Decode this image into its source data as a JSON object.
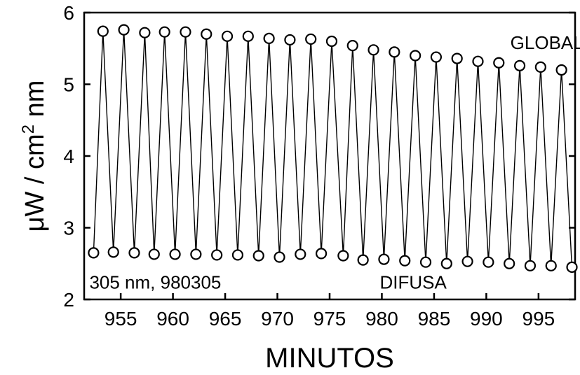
{
  "chart_data": {
    "type": "line",
    "title": "",
    "xlabel": "MINUTOS",
    "ylabel_main": "μW / cm",
    "ylabel_sup": "2",
    "ylabel_tail": " nm",
    "xlim": [
      951.5,
      998.5
    ],
    "ylim": [
      2,
      6
    ],
    "x_ticks": [
      955,
      960,
      965,
      970,
      975,
      980,
      985,
      990,
      995
    ],
    "x_tick_labels": [
      "955",
      "960",
      "965",
      "970",
      "975",
      "980",
      "985",
      "990",
      "995"
    ],
    "y_ticks": [
      2,
      3,
      4,
      5,
      6
    ],
    "y_tick_labels": [
      "2",
      "3",
      "4",
      "5",
      "6"
    ],
    "grid": false,
    "marker": "open-circle",
    "line_color": "#000000",
    "annotations": [
      {
        "text": "GLOBAL",
        "x": 992.3,
        "y": 5.59
      },
      {
        "text": "DIFUSA",
        "x": 979.8,
        "y": 2.25
      },
      {
        "text": "305 nm, 980305",
        "x": 952.0,
        "y": 2.25
      }
    ],
    "series": [
      {
        "x": [
          952.4,
          953.3,
          954.3,
          955.3,
          956.3,
          957.3,
          958.2,
          959.2,
          960.2,
          961.2,
          962.2,
          963.2,
          964.2,
          965.2,
          966.2,
          967.2,
          968.2,
          969.2,
          970.2,
          971.2,
          972.2,
          973.2,
          974.2,
          975.2,
          976.3,
          977.2,
          978.2,
          979.2,
          980.2,
          981.2,
          982.2,
          983.2,
          984.2,
          985.2,
          986.2,
          987.2,
          988.2,
          989.2,
          990.2,
          991.2,
          992.2,
          993.2,
          994.2,
          995.2,
          996.2,
          997.2,
          998.2
        ],
        "values": [
          2.65,
          5.74,
          2.66,
          5.76,
          2.65,
          5.72,
          2.63,
          5.73,
          2.63,
          5.73,
          2.63,
          5.7,
          2.62,
          5.67,
          2.62,
          5.67,
          2.61,
          5.64,
          2.59,
          5.62,
          2.63,
          5.63,
          2.64,
          5.6,
          2.61,
          5.54,
          2.55,
          5.48,
          2.56,
          5.45,
          2.54,
          5.4,
          2.52,
          5.38,
          2.5,
          5.36,
          2.53,
          5.32,
          2.52,
          5.3,
          2.5,
          5.26,
          2.47,
          5.24,
          2.47,
          5.2,
          2.45
        ]
      }
    ]
  }
}
